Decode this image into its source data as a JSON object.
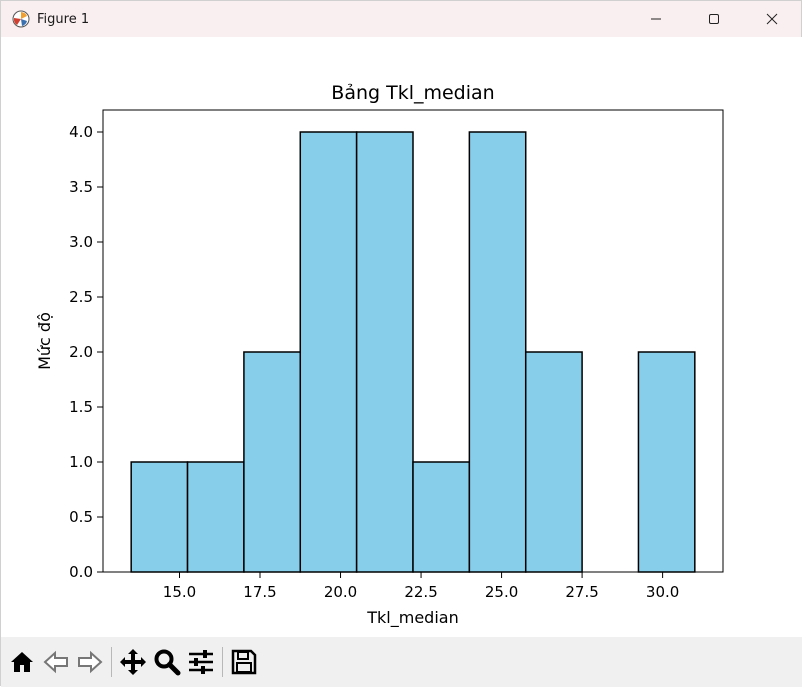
{
  "window": {
    "title": "Figure 1",
    "app_icon": "matplotlib-icon",
    "controls": [
      "minimize",
      "maximize",
      "close"
    ]
  },
  "toolbar": {
    "tools": [
      {
        "name": "home-icon",
        "label": "Home"
      },
      {
        "name": "back-icon",
        "label": "Back"
      },
      {
        "name": "forward-icon",
        "label": "Forward"
      },
      {
        "name": "pan-icon",
        "label": "Pan"
      },
      {
        "name": "zoom-icon",
        "label": "Zoom"
      },
      {
        "name": "configure-subplots-icon",
        "label": "Configure subplots"
      },
      {
        "name": "save-icon",
        "label": "Save"
      }
    ]
  },
  "chart_data": {
    "type": "bar",
    "title": "Bảng Tkl_median",
    "xlabel": "Tkl_median",
    "ylabel": "Mức độ",
    "bin_edges": [
      13.5,
      15.25,
      17.0,
      18.75,
      20.5,
      22.25,
      24.0,
      25.75,
      27.5,
      29.25,
      31.0
    ],
    "values": [
      1,
      1,
      2,
      4,
      4,
      1,
      4,
      2,
      0,
      2
    ],
    "xlim": [
      12.625,
      31.875
    ],
    "ylim": [
      0,
      4.2
    ],
    "xticks": [
      15.0,
      17.5,
      20.0,
      22.5,
      25.0,
      27.5,
      30.0
    ],
    "xtick_labels": [
      "15.0",
      "17.5",
      "20.0",
      "22.5",
      "25.0",
      "27.5",
      "30.0"
    ],
    "yticks": [
      0.0,
      0.5,
      1.0,
      1.5,
      2.0,
      2.5,
      3.0,
      3.5,
      4.0
    ],
    "ytick_labels": [
      "0.0",
      "0.5",
      "1.0",
      "1.5",
      "2.0",
      "2.5",
      "3.0",
      "3.5",
      "4.0"
    ],
    "bar_color": "#87ceeb",
    "edge_color": "#000000",
    "grid": false
  }
}
